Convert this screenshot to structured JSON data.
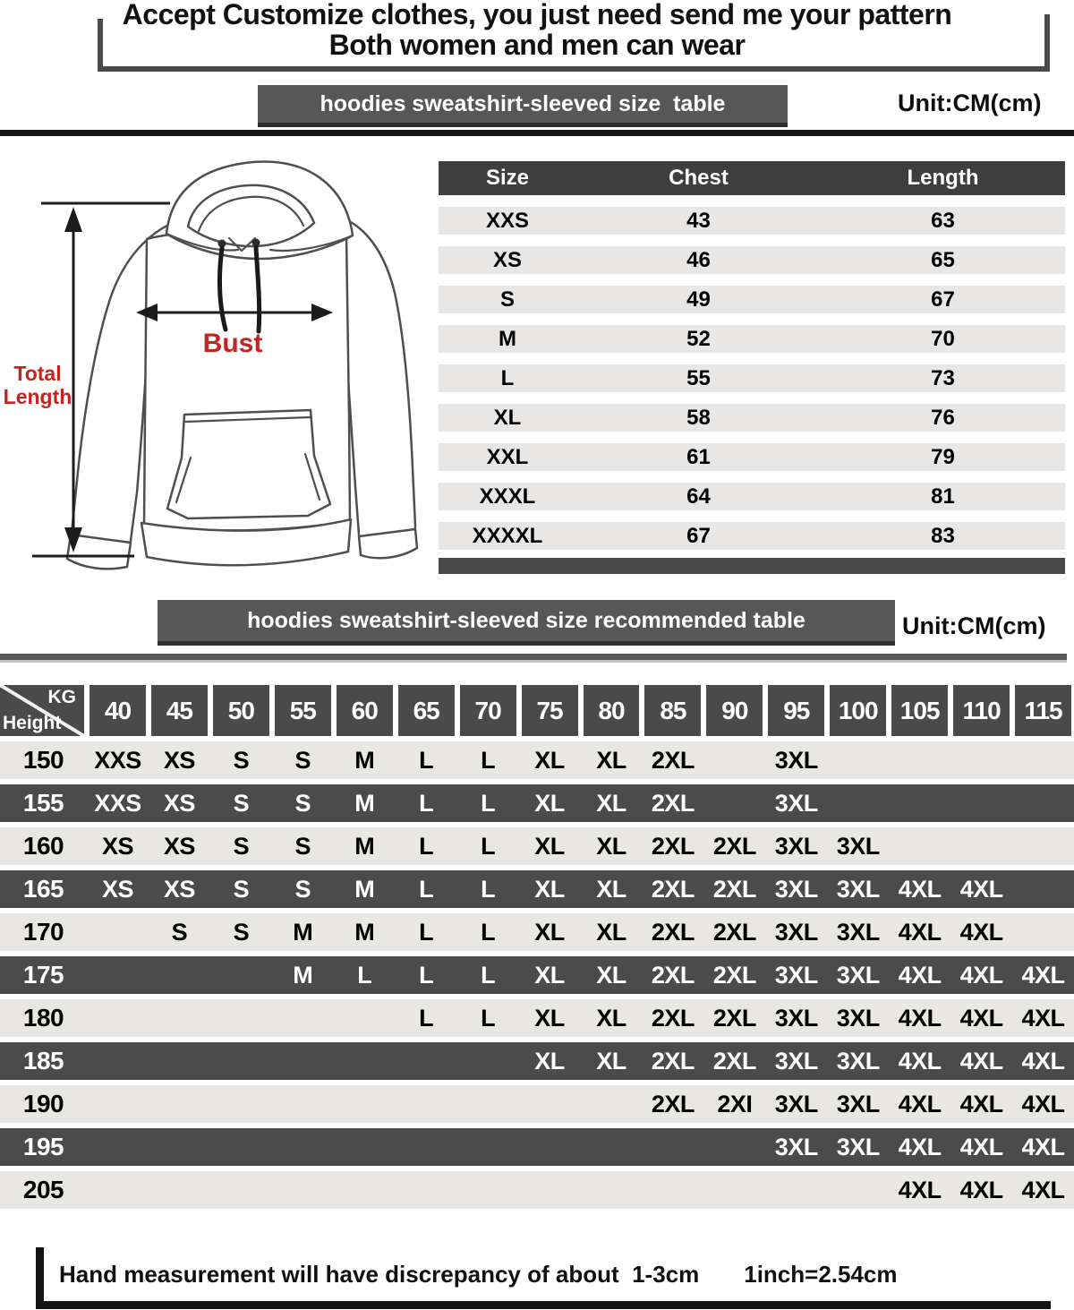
{
  "header": {
    "line1": "Accept Customize clothes, you just need send me your pattern",
    "line2": "Both women and men can wear"
  },
  "size_section": {
    "banner": "hoodies sweatshirt-sleeved size  table",
    "unit": "Unit:CM(cm)"
  },
  "figure": {
    "bust_label": "Bust",
    "total_length_label": "Total Length"
  },
  "size_table": {
    "columns": [
      "Size",
      "Chest",
      "Length"
    ],
    "rows": [
      [
        "XXS",
        "43",
        "63"
      ],
      [
        "XS",
        "46",
        "65"
      ],
      [
        "S",
        "49",
        "67"
      ],
      [
        "M",
        "52",
        "70"
      ],
      [
        "L",
        "55",
        "73"
      ],
      [
        "XL",
        "58",
        "76"
      ],
      [
        "XXL",
        "61",
        "79"
      ],
      [
        "XXXL",
        "64",
        "81"
      ],
      [
        "XXXXL",
        "67",
        "83"
      ]
    ]
  },
  "recommend_section": {
    "banner": "hoodies sweatshirt-sleeved size recommended table",
    "unit": "Unit:CM(cm)"
  },
  "recommend_table": {
    "corner_top": "KG",
    "corner_bottom": "Height",
    "weights": [
      "40",
      "45",
      "50",
      "55",
      "60",
      "65",
      "70",
      "75",
      "80",
      "85",
      "90",
      "95",
      "100",
      "105",
      "110",
      "115"
    ],
    "rows": [
      {
        "height": "150",
        "shade": "light",
        "cells": [
          "XXS",
          "XS",
          "S",
          "S",
          "M",
          "L",
          "L",
          "XL",
          "XL",
          "2XL",
          "",
          "3XL",
          "",
          "",
          "",
          ""
        ]
      },
      {
        "height": "155",
        "shade": "dark",
        "cells": [
          "XXS",
          "XS",
          "S",
          "S",
          "M",
          "L",
          "L",
          "XL",
          "XL",
          "2XL",
          "",
          "3XL",
          "",
          "",
          "",
          ""
        ]
      },
      {
        "height": "160",
        "shade": "light",
        "cells": [
          "XS",
          "XS",
          "S",
          "S",
          "M",
          "L",
          "L",
          "XL",
          "XL",
          "2XL",
          "2XL",
          "3XL",
          "3XL",
          "",
          "",
          ""
        ]
      },
      {
        "height": "165",
        "shade": "dark",
        "cells": [
          "XS",
          "XS",
          "S",
          "S",
          "M",
          "L",
          "L",
          "XL",
          "XL",
          "2XL",
          "2XL",
          "3XL",
          "3XL",
          "4XL",
          "4XL",
          ""
        ]
      },
      {
        "height": "170",
        "shade": "light",
        "cells": [
          "",
          "S",
          "S",
          "M",
          "M",
          "L",
          "L",
          "XL",
          "XL",
          "2XL",
          "2XL",
          "3XL",
          "3XL",
          "4XL",
          "4XL",
          ""
        ]
      },
      {
        "height": "175",
        "shade": "dark",
        "cells": [
          "",
          "",
          "",
          "M",
          "L",
          "L",
          "L",
          "XL",
          "XL",
          "2XL",
          "2XL",
          "3XL",
          "3XL",
          "4XL",
          "4XL",
          "4XL"
        ]
      },
      {
        "height": "180",
        "shade": "light",
        "cells": [
          "",
          "",
          "",
          "",
          "",
          "L",
          "L",
          "XL",
          "XL",
          "2XL",
          "2XL",
          "3XL",
          "3XL",
          "4XL",
          "4XL",
          "4XL"
        ]
      },
      {
        "height": "185",
        "shade": "dark",
        "cells": [
          "",
          "",
          "",
          "",
          "",
          "",
          "",
          "XL",
          "XL",
          "2XL",
          "2XL",
          "3XL",
          "3XL",
          "4XL",
          "4XL",
          "4XL"
        ]
      },
      {
        "height": "190",
        "shade": "light",
        "cells": [
          "",
          "",
          "",
          "",
          "",
          "",
          "",
          "",
          "",
          "2XL",
          "2XI",
          "3XL",
          "3XL",
          "4XL",
          "4XL",
          "4XL"
        ]
      },
      {
        "height": "195",
        "shade": "dark",
        "cells": [
          "",
          "",
          "",
          "",
          "",
          "",
          "",
          "",
          "",
          "",
          "",
          "3XL",
          "3XL",
          "4XL",
          "4XL",
          "4XL"
        ]
      },
      {
        "height": "205",
        "shade": "light",
        "cells": [
          "",
          "",
          "",
          "",
          "",
          "",
          "",
          "",
          "",
          "",
          "",
          "",
          "",
          "4XL",
          "4XL",
          "4XL"
        ]
      }
    ]
  },
  "footer": {
    "note": "Hand measurement will have discrepancy of about  1-3cm",
    "conversion": "1inch=2.54cm"
  },
  "colors": {
    "banner_bg": "#575757",
    "table_header_bg": "#3e3e3e",
    "dark_row_bg": "#4b4b4b",
    "light_row_bg": "#e8e7e4",
    "accent_red": "#c5231f",
    "divider_black": "#161616"
  }
}
